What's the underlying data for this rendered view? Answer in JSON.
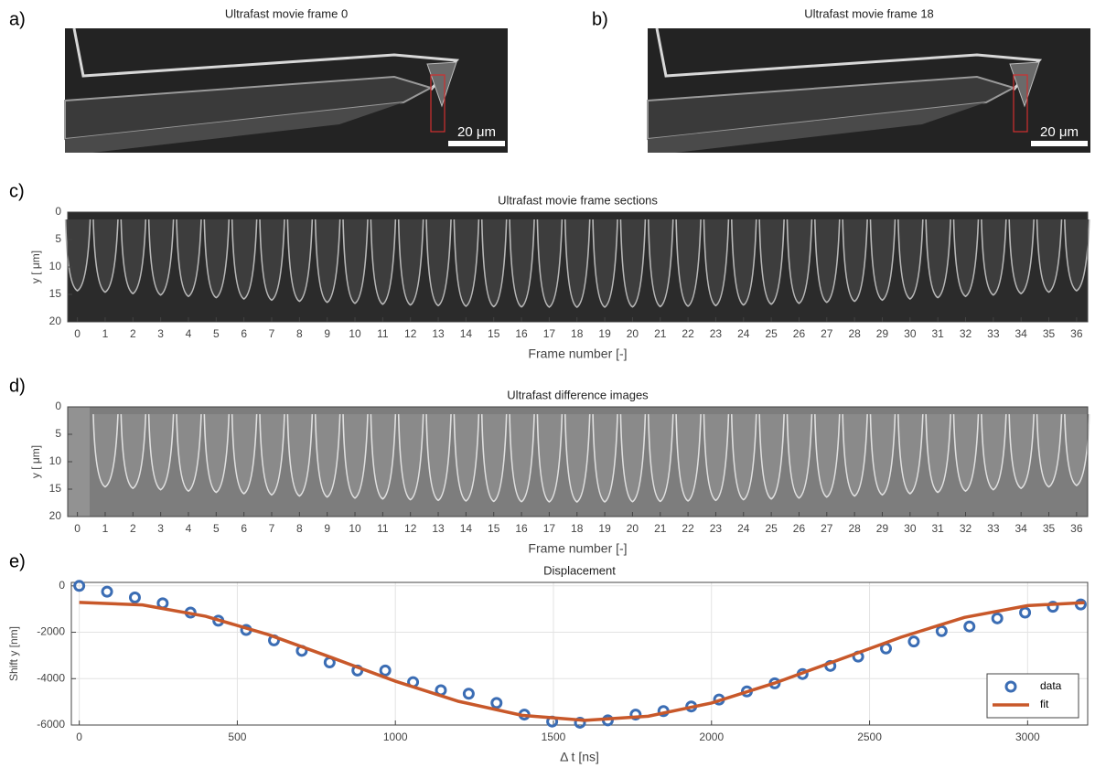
{
  "images": [
    {
      "label": "a)",
      "title": "Ultrafast movie frame 0",
      "scale_bar": "20 μm"
    },
    {
      "label": "b)",
      "title": "Ultrafast movie frame 18",
      "scale_bar": "20 μm"
    }
  ],
  "chart_data": [
    {
      "type": "image",
      "panel": "c)",
      "title": "Ultrafast movie frame sections",
      "xlabel": "Frame number [-]",
      "ylabel": "y [ μm]",
      "xlim": [
        -0.35,
        36.4
      ],
      "xticks": [
        0,
        1,
        2,
        3,
        4,
        5,
        6,
        7,
        8,
        9,
        10,
        11,
        12,
        13,
        14,
        15,
        16,
        17,
        18,
        19,
        20,
        21,
        22,
        23,
        24,
        25,
        26,
        27,
        28,
        29,
        30,
        31,
        32,
        33,
        34,
        35,
        36
      ],
      "ylim": [
        20,
        0
      ],
      "yticks": [
        0,
        5,
        10,
        15,
        20
      ],
      "color": "#2b2b2b"
    },
    {
      "type": "image",
      "panel": "d)",
      "title": "Ultrafast difference images",
      "xlabel": "Frame number [-]",
      "ylabel": "y [ μm]",
      "xlim": [
        -0.35,
        36.4
      ],
      "xticks": [
        0,
        1,
        2,
        3,
        4,
        5,
        6,
        7,
        8,
        9,
        10,
        11,
        12,
        13,
        14,
        15,
        16,
        17,
        18,
        19,
        20,
        21,
        22,
        23,
        24,
        25,
        26,
        27,
        28,
        29,
        30,
        31,
        32,
        33,
        34,
        35,
        36
      ],
      "ylim": [
        20,
        0
      ],
      "yticks": [
        0,
        5,
        10,
        15,
        20
      ],
      "color": "#7d7d7d"
    },
    {
      "type": "scatter-line",
      "panel": "e)",
      "title": "Displacement",
      "xlabel": "Δ t [ns]",
      "ylabel": "Shift y [nm]",
      "xlim": [
        -25,
        3190
      ],
      "xticks": [
        0,
        500,
        1000,
        1500,
        2000,
        2500,
        3000
      ],
      "ylim": [
        -6000,
        150
      ],
      "yticks": [
        -6000,
        -4000,
        -2000,
        0
      ],
      "grid": true,
      "legend": "lower right",
      "series": [
        {
          "name": "data",
          "kind": "markers",
          "color": "#3b6db4",
          "x": [
            0,
            88,
            176,
            264,
            352,
            440,
            528,
            616,
            704,
            792,
            880,
            968,
            1056,
            1144,
            1232,
            1320,
            1408,
            1496,
            1584,
            1672,
            1760,
            1848,
            1936,
            2024,
            2112,
            2200,
            2288,
            2376,
            2464,
            2552,
            2640,
            2728,
            2816,
            2904,
            2992,
            3080,
            3168
          ],
          "values": [
            0,
            -250,
            -500,
            -750,
            -1150,
            -1500,
            -1900,
            -2350,
            -2800,
            -3300,
            -3650,
            -3650,
            -4150,
            -4500,
            -4650,
            -5050,
            -5550,
            -5850,
            -5900,
            -5800,
            -5550,
            -5400,
            -5200,
            -4900,
            -4550,
            -4200,
            -3800,
            -3450,
            -3050,
            -2700,
            -2400,
            -1950,
            -1750,
            -1400,
            -1150,
            -900,
            -800
          ]
        },
        {
          "name": "fit",
          "kind": "line",
          "color": "#c8582a",
          "x": [
            0,
            200,
            400,
            600,
            800,
            1000,
            1200,
            1400,
            1600,
            1800,
            2000,
            2200,
            2400,
            2600,
            2800,
            3000,
            3180
          ],
          "values": [
            -710,
            -820,
            -1310,
            -2110,
            -3100,
            -4110,
            -4980,
            -5580,
            -5800,
            -5620,
            -5050,
            -4190,
            -3200,
            -2210,
            -1360,
            -850,
            -720
          ]
        }
      ]
    }
  ]
}
